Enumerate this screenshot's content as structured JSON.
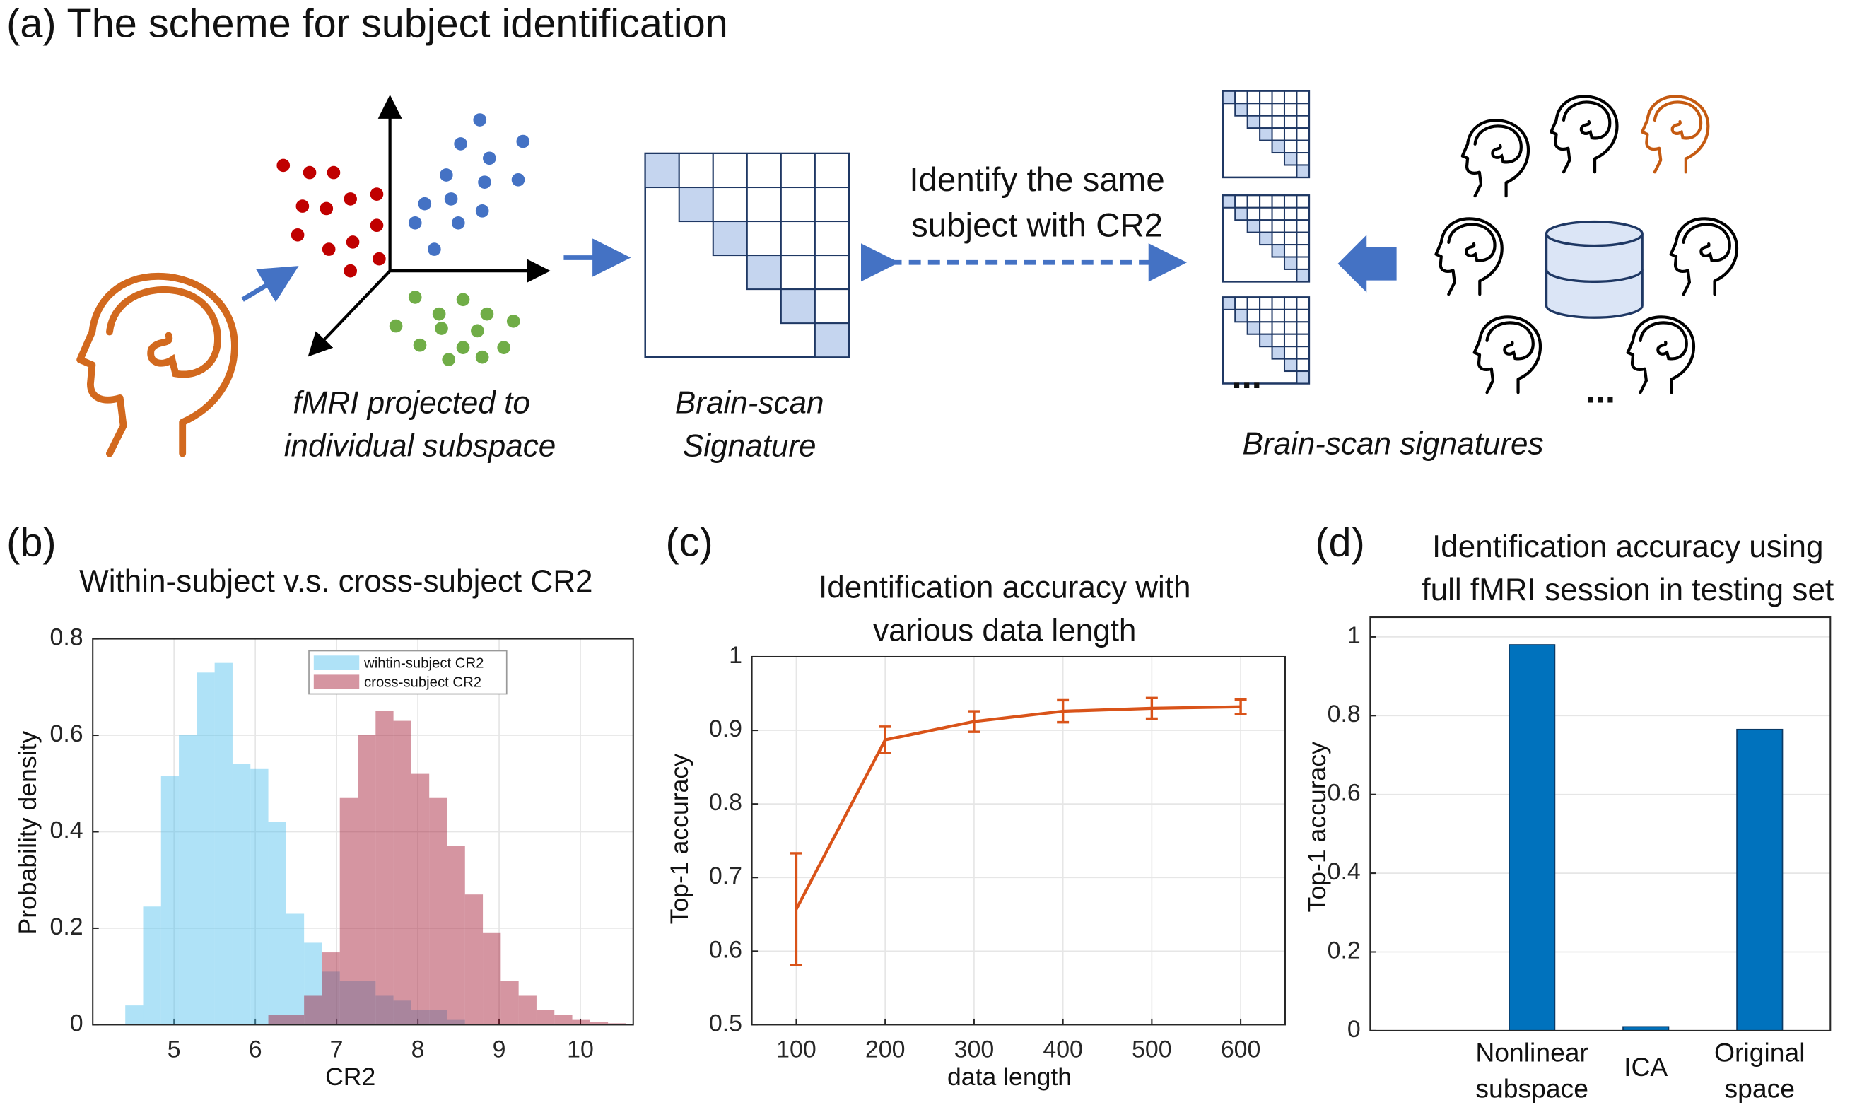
{
  "scheme": {
    "title": "(a) The scheme for subject identification",
    "projection_label": [
      "fMRI projected to",
      "individual subspace"
    ],
    "signature_label": [
      "Brain-scan",
      "Signature"
    ],
    "identify_label": [
      "Identify the same",
      "subject with CR2"
    ],
    "signatures_label": "Brain-scan signatures",
    "ellipsis_matrices": "...",
    "ellipsis_heads": "..."
  },
  "chart_data": [
    {
      "type": "histogram",
      "label": "(b)",
      "title": "Within-subject v.s. cross-subject CR2",
      "xlabel": "CR2",
      "ylabel": "Probability density",
      "bins": [
        4.4,
        4.62,
        4.84,
        5.06,
        5.28,
        5.5,
        5.72,
        5.94,
        6.16,
        6.38,
        6.6,
        6.82,
        7.04,
        7.26,
        7.48,
        7.7,
        7.92,
        8.14,
        8.36,
        8.58,
        8.8,
        9.02,
        9.24,
        9.46,
        9.68,
        9.9,
        10.12,
        10.34,
        10.56
      ],
      "series": [
        {
          "name": "wihtin-subject CR2",
          "color": "#4dbeee",
          "values": [
            0.04,
            0.245,
            0.515,
            0.6,
            0.73,
            0.75,
            0.54,
            0.53,
            0.42,
            0.23,
            0.17,
            0.11,
            0.09,
            0.09,
            0.06,
            0.05,
            0.03,
            0.03,
            0.01,
            0,
            0,
            0,
            0,
            0,
            0,
            0,
            0,
            0
          ]
        },
        {
          "name": "cross-subject CR2",
          "color": "#a2142f",
          "values": [
            0,
            0,
            0,
            0,
            0,
            0,
            0,
            0,
            0.02,
            0.02,
            0.06,
            0.15,
            0.47,
            0.6,
            0.65,
            0.63,
            0.52,
            0.47,
            0.37,
            0.27,
            0.19,
            0.09,
            0.06,
            0.03,
            0.02,
            0.01,
            0.005,
            0.003
          ]
        }
      ],
      "xlim": [
        4,
        10.65
      ],
      "xticks": [
        5,
        6,
        7,
        8,
        9,
        10
      ],
      "ylim": [
        0,
        0.8
      ],
      "yticks": [
        0,
        0.2,
        0.4,
        0.6,
        0.8
      ],
      "grid": true,
      "legend": "top"
    },
    {
      "type": "line",
      "label": "(c)",
      "title": [
        "Identification accuracy with",
        "various data length"
      ],
      "xlabel": "data length",
      "ylabel": "Top-1 accuracy",
      "x": [
        100,
        200,
        300,
        400,
        500,
        600
      ],
      "values": [
        0.657,
        0.887,
        0.912,
        0.926,
        0.93,
        0.932
      ],
      "errors": [
        0.076,
        0.018,
        0.014,
        0.015,
        0.014,
        0.01
      ],
      "color": "#d95319",
      "xlim": [
        50,
        650
      ],
      "xticks": [
        100,
        200,
        300,
        400,
        500,
        600
      ],
      "ylim": [
        0.5,
        1
      ],
      "yticks": [
        0.5,
        0.6,
        0.7,
        0.8,
        0.9,
        1
      ],
      "grid": true
    },
    {
      "type": "bar",
      "label": "(d)",
      "title": [
        "Identification accuracy using",
        "full fMRI session in testing set"
      ],
      "ylabel": "Top-1 accuracy",
      "categories": [
        [
          "Nonlinear",
          "subspace"
        ],
        [
          "ICA"
        ],
        [
          "Original",
          "space"
        ]
      ],
      "values": [
        0.98,
        0.01,
        0.765
      ],
      "color": "#0072bd",
      "ylim": [
        0,
        1.05
      ],
      "yticks": [
        0,
        0.2,
        0.4,
        0.6,
        0.8,
        1
      ],
      "grid": true
    }
  ]
}
